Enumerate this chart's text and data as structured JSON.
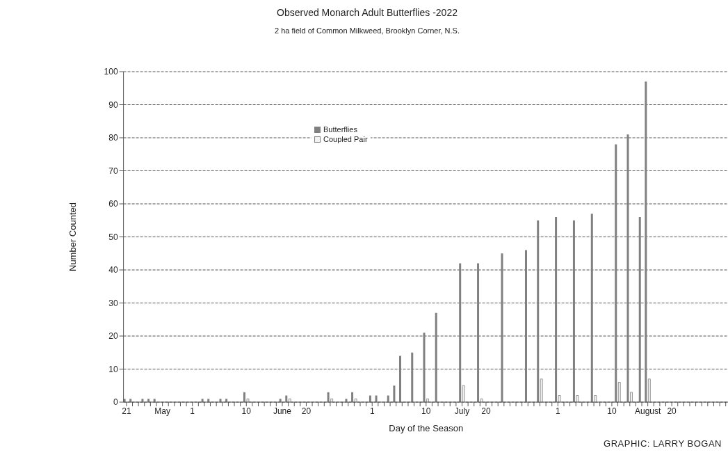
{
  "chart_data": {
    "type": "bar",
    "title": "Observed Monarch Adult Butterflies -2022",
    "subtitle": "2 ha field of Common Milkweed, Brooklyn Corner, N.S.",
    "xlabel": "Day of the Season",
    "ylabel": "Number Counted",
    "annotations": [
      "GRAPHIC: LARRY BOGAN"
    ],
    "categories": [
      "21",
      null,
      null,
      null,
      null,
      null,
      "May",
      null,
      null,
      null,
      null,
      "1",
      null,
      null,
      null,
      null,
      null,
      null,
      null,
      null,
      "10",
      null,
      null,
      null,
      null,
      null,
      "June",
      null,
      null,
      null,
      "20",
      null,
      null,
      null,
      null,
      null,
      null,
      null,
      null,
      null,
      null,
      "1",
      null,
      null,
      null,
      null,
      null,
      null,
      null,
      null,
      "10",
      null,
      null,
      null,
      null,
      null,
      "July",
      null,
      null,
      null,
      "20",
      null,
      null,
      null,
      null,
      null,
      null,
      null,
      null,
      null,
      null,
      null,
      "1",
      null,
      null,
      null,
      null,
      null,
      null,
      null,
      null,
      "10",
      null,
      null,
      null,
      null,
      null,
      "August",
      null,
      null,
      null,
      "20",
      null,
      null,
      null,
      null,
      null,
      null,
      null,
      null,
      null
    ],
    "series": [
      {
        "name": "Butterflies",
        "color": "#808080",
        "values": [
          1,
          1,
          null,
          1,
          1,
          1,
          null,
          null,
          null,
          null,
          null,
          null,
          null,
          1,
          1,
          null,
          1,
          1,
          null,
          null,
          3,
          null,
          null,
          null,
          null,
          null,
          1,
          2,
          null,
          null,
          null,
          null,
          null,
          null,
          3,
          null,
          null,
          1,
          3,
          null,
          null,
          2,
          2,
          null,
          2,
          5,
          14,
          null,
          15,
          null,
          21,
          null,
          27,
          null,
          null,
          null,
          42,
          null,
          null,
          42,
          null,
          null,
          null,
          45,
          null,
          null,
          null,
          46,
          null,
          55,
          null,
          null,
          56,
          null,
          null,
          55,
          null,
          null,
          57,
          null,
          null,
          null,
          78,
          null,
          81,
          null,
          56,
          97,
          null,
          null,
          null,
          null,
          null,
          null,
          null,
          null,
          null,
          null,
          null,
          null,
          null
        ]
      },
      {
        "name": "Coupled Pair",
        "color": "#f2f2f2",
        "values": [
          null,
          null,
          null,
          null,
          null,
          null,
          null,
          null,
          null,
          null,
          null,
          null,
          null,
          null,
          null,
          null,
          null,
          null,
          null,
          null,
          1,
          null,
          null,
          null,
          null,
          null,
          null,
          1,
          null,
          null,
          null,
          null,
          null,
          null,
          1,
          null,
          null,
          null,
          1,
          null,
          null,
          null,
          null,
          null,
          null,
          null,
          null,
          null,
          null,
          null,
          1,
          null,
          null,
          null,
          null,
          null,
          5,
          null,
          null,
          1,
          null,
          null,
          null,
          null,
          null,
          null,
          null,
          null,
          null,
          7,
          null,
          null,
          2,
          null,
          null,
          2,
          null,
          null,
          2,
          null,
          null,
          null,
          6,
          null,
          3,
          null,
          null,
          7,
          null,
          null,
          null,
          null,
          null,
          null,
          null,
          null,
          null,
          null,
          null,
          null,
          null
        ]
      }
    ],
    "ylim": [
      0,
      100
    ],
    "yticks": [
      0,
      10,
      20,
      30,
      40,
      50,
      60,
      70,
      80,
      90,
      100
    ],
    "grid": "y",
    "legend": "top"
  }
}
